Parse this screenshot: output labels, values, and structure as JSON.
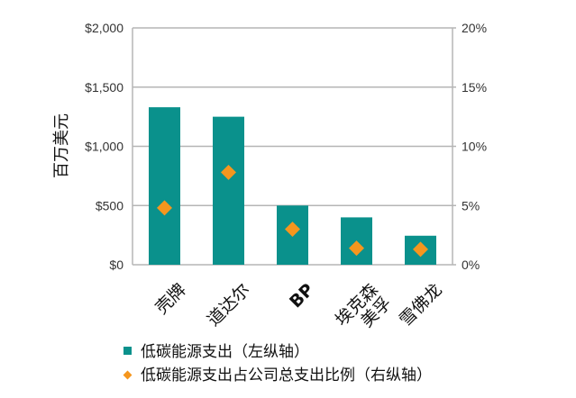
{
  "chart_data": {
    "type": "bar",
    "categories": [
      "壳牌",
      "道达尔",
      "BP",
      "埃克森美孚",
      "雪佛龙"
    ],
    "category_lines": [
      [
        "壳牌"
      ],
      [
        "道达尔"
      ],
      [
        "BP"
      ],
      [
        "埃克森",
        "美孚"
      ],
      [
        "雪佛龙"
      ]
    ],
    "series": [
      {
        "name": "低碳能源支出（左纵轴）",
        "type": "bar",
        "axis": "left",
        "color": "#0a918c",
        "values": [
          1330,
          1250,
          500,
          400,
          245
        ]
      },
      {
        "name": "低碳能源支出占公司总支出比例（右纵轴）",
        "type": "scatter",
        "marker": "diamond",
        "axis": "right",
        "color": "#f5961e",
        "values": [
          4.8,
          7.8,
          3.0,
          1.4,
          1.3
        ]
      }
    ],
    "ylabel": "百万美元",
    "ylim": [
      0,
      2000
    ],
    "y_ticks": [
      "$0",
      "$500",
      "$1,000",
      "$1,500",
      "$2,000"
    ],
    "y2lim": [
      0,
      20
    ],
    "y2_ticks": [
      "0%",
      "5%",
      "10%",
      "15%",
      "20%"
    ],
    "grid": true,
    "legend_position": "bottom"
  }
}
